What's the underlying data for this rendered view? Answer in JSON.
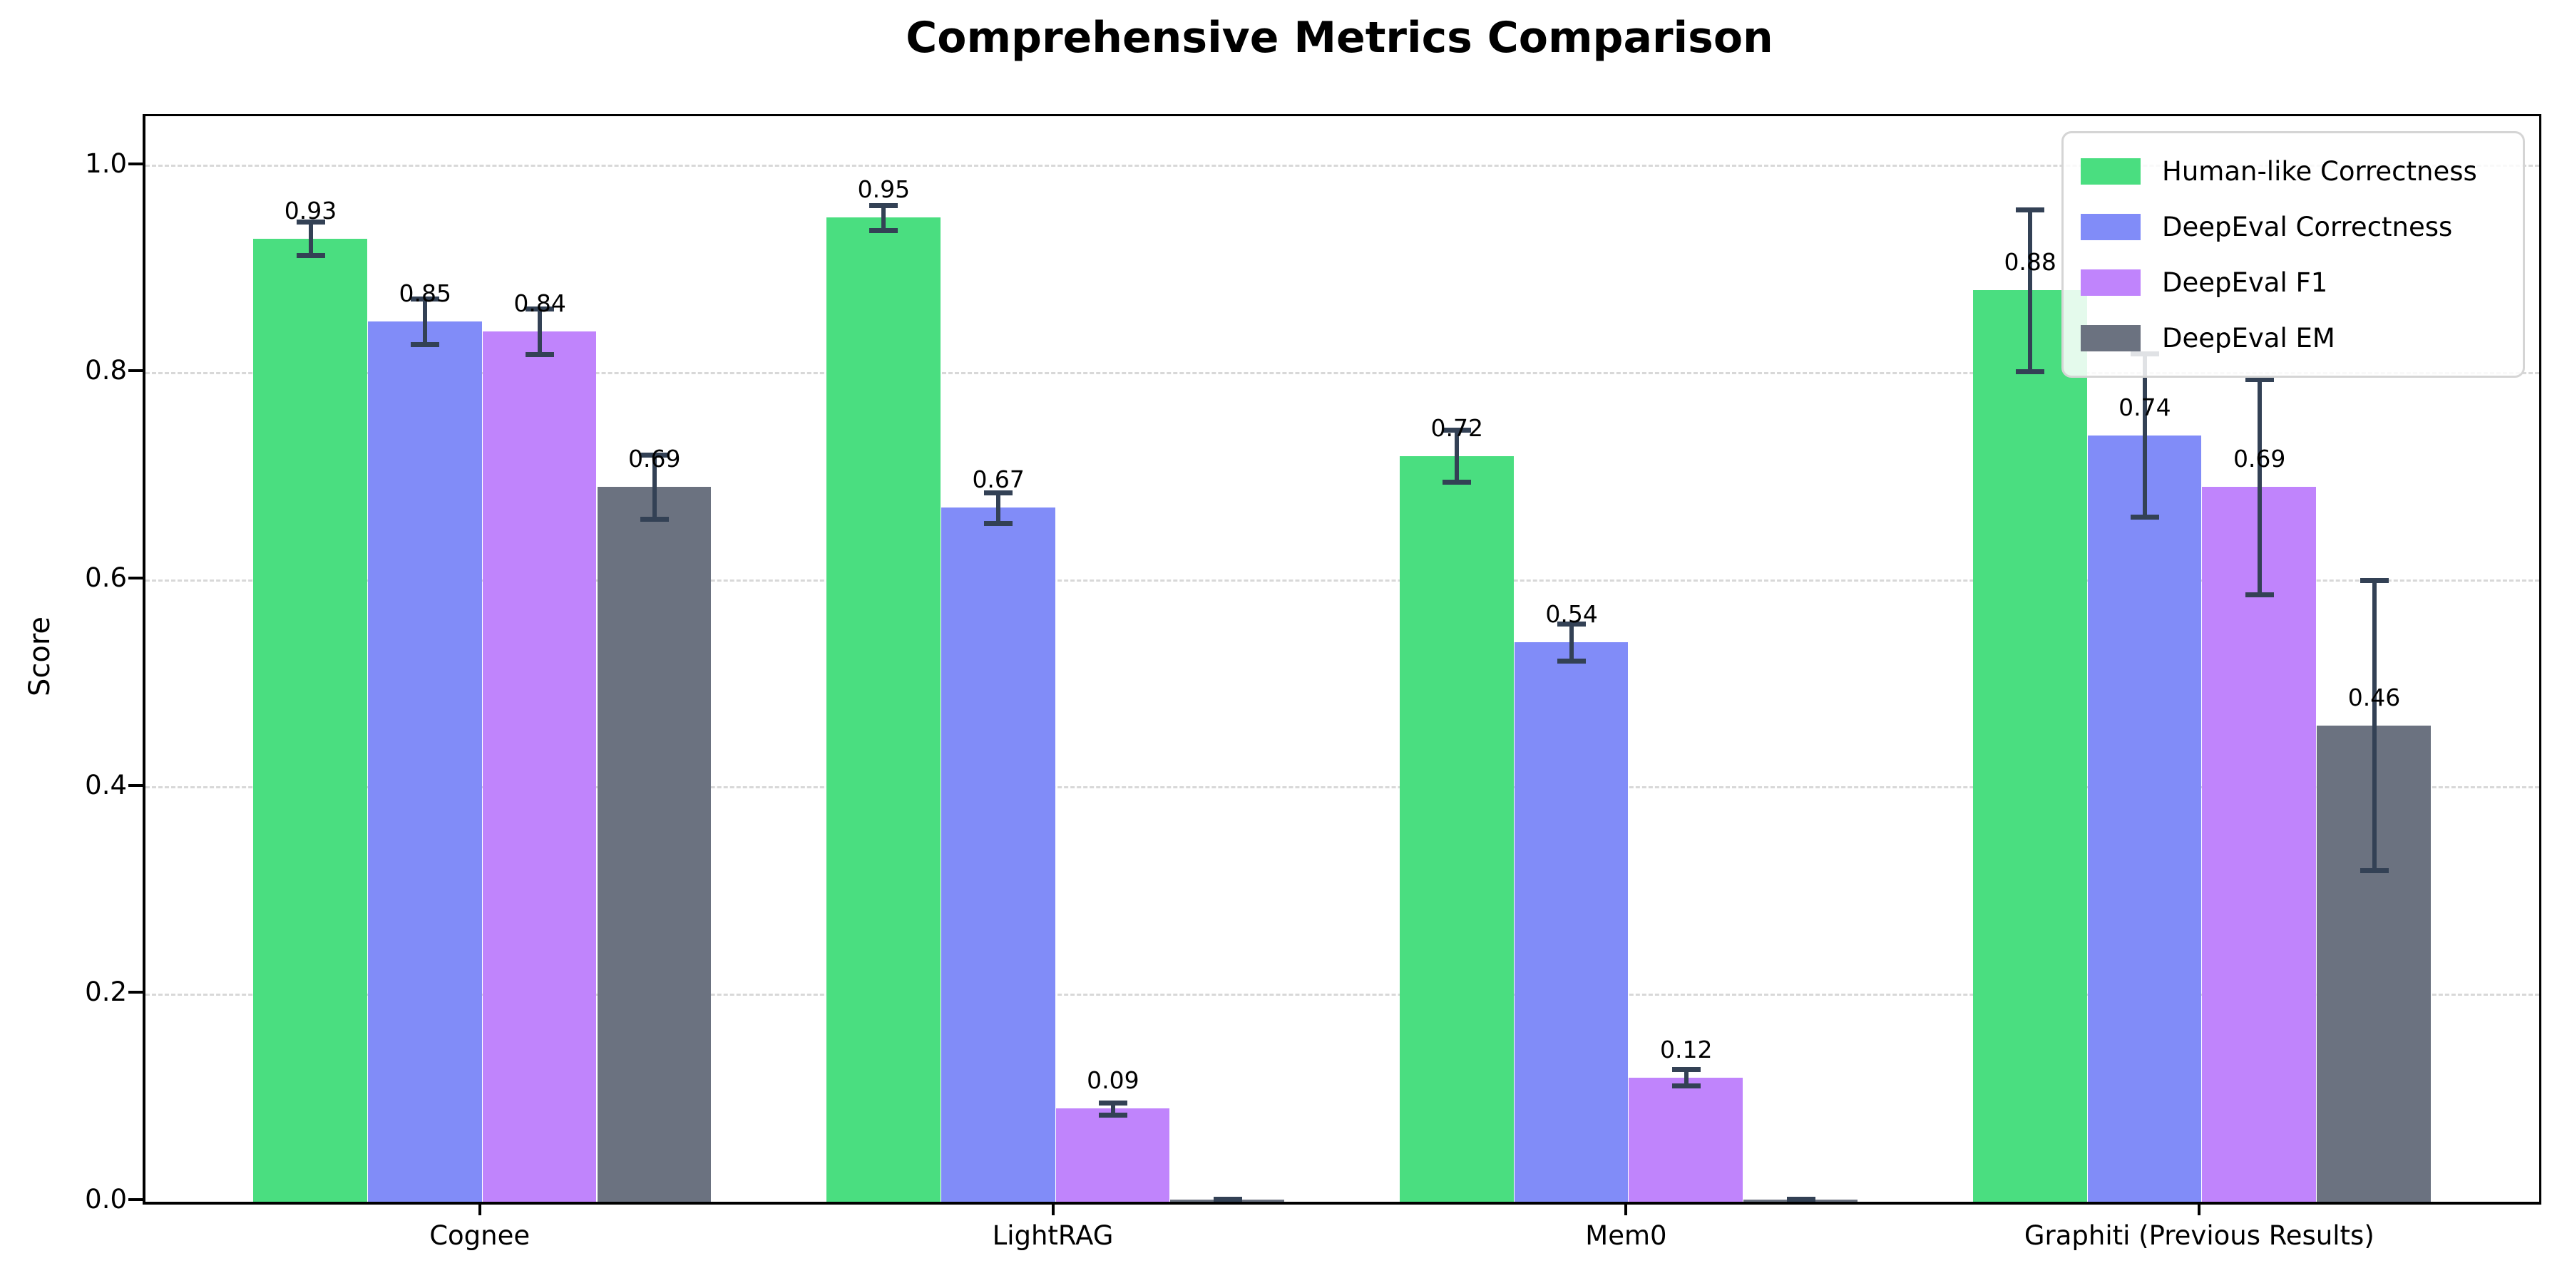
{
  "chart_data": {
    "type": "bar",
    "title": "Comprehensive Metrics Comparison",
    "ylabel": "Score",
    "xlabel": "",
    "categories": [
      "Cognee",
      "LightRAG",
      "Mem0",
      "Graphiti (Previous Results)"
    ],
    "series": [
      {
        "name": "Human-like Correctness",
        "color": "#4ade80",
        "values": [
          0.93,
          0.95,
          0.72,
          0.88
        ],
        "errors": [
          0.016,
          0.012,
          0.025,
          0.078
        ],
        "labels": [
          "0.93",
          "0.95",
          "0.72",
          "0.88"
        ]
      },
      {
        "name": "DeepEval Correctness",
        "color": "#818cf8",
        "values": [
          0.85,
          0.67,
          0.54,
          0.74
        ],
        "errors": [
          0.022,
          0.015,
          0.018,
          0.079
        ],
        "labels": [
          "0.85",
          "0.67",
          "0.54",
          "0.74"
        ]
      },
      {
        "name": "DeepEval F1",
        "color": "#c084fc",
        "values": [
          0.84,
          0.09,
          0.12,
          0.69
        ],
        "errors": [
          0.022,
          0.006,
          0.008,
          0.104
        ],
        "labels": [
          "0.84",
          "0.09",
          "0.12",
          "0.69"
        ]
      },
      {
        "name": "DeepEval EM",
        "color": "#6b7280",
        "values": [
          0.69,
          0.0,
          0.0,
          0.46
        ],
        "errors": [
          0.031,
          0.003,
          0.003,
          0.14
        ],
        "labels": [
          "0.69",
          "",
          "",
          "0.46"
        ]
      }
    ],
    "yticks": [
      "0.0",
      "0.2",
      "0.4",
      "0.6",
      "0.8",
      "1.0"
    ],
    "ytick_values": [
      0.0,
      0.2,
      0.4,
      0.6,
      0.8,
      1.0
    ],
    "ylim": [
      0,
      1.048
    ],
    "grid": "horizontal-dashed",
    "grid_color": "#d8d8d8",
    "error_bar_color": "#334155",
    "legend_position": "upper right"
  }
}
